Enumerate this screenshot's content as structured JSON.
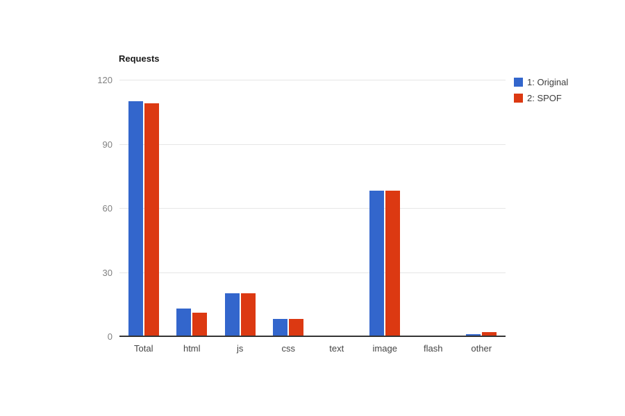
{
  "chart_data": {
    "type": "bar",
    "title": "Requests",
    "categories": [
      "Total",
      "html",
      "js",
      "css",
      "text",
      "image",
      "flash",
      "other"
    ],
    "series": [
      {
        "name": "1: Original",
        "color": "#3366cc",
        "values": [
          110,
          13,
          20,
          8,
          0,
          68,
          0,
          1
        ]
      },
      {
        "name": "2: SPOF",
        "color": "#dc3912",
        "values": [
          109,
          11,
          20,
          8,
          0,
          68,
          0,
          2
        ]
      }
    ],
    "ylim": [
      0,
      120
    ],
    "yticks": [
      0,
      30,
      60,
      90,
      120
    ],
    "grid": true,
    "legend_position": "right",
    "colors": {
      "grid": "#e6e6e6",
      "axis": "#333333",
      "tick_text": "#808080",
      "category_text": "#444444",
      "title_text": "#1a1a1a"
    }
  },
  "legend": {
    "items": [
      {
        "label": "1: Original",
        "color": "#3366cc"
      },
      {
        "label": "2: SPOF",
        "color": "#dc3912"
      }
    ]
  }
}
